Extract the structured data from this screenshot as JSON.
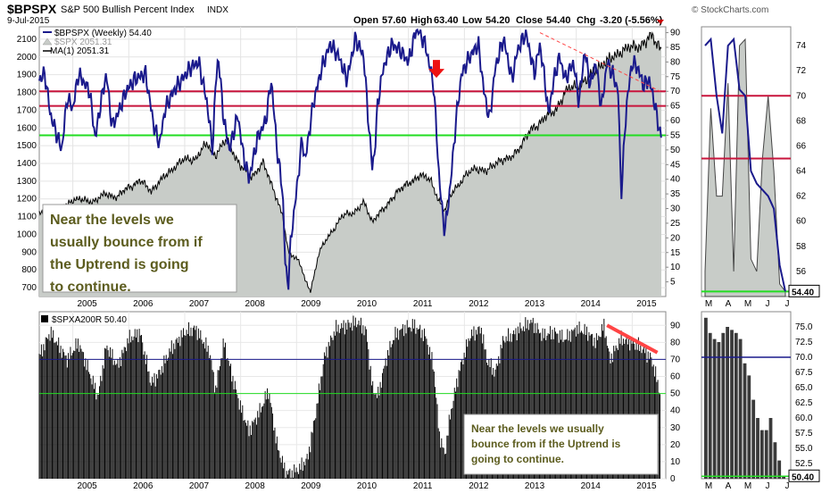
{
  "header": {
    "symbol": "$BPSPX",
    "description": "S&P 500 Bullish Percent Index",
    "exchange": "INDX",
    "date": "9-Jul-2015",
    "open_label": "Open",
    "open": "57.60",
    "high_label": "High",
    "high": "63.40",
    "low_label": "Low",
    "low": "54.20",
    "close_label": "Close",
    "close": "54.40",
    "chg_label": "Chg",
    "chg": "-3.20 (-5.56%)",
    "brand": "© StockCharts.com"
  },
  "colors": {
    "bp_line": "#1a1a8c",
    "spx_fill": "#c8ccc8",
    "spx_line": "#000000",
    "red_level": "#c8143c",
    "green_level": "#22dd22",
    "navy_level": "#1a1a8c",
    "annotation_text": "#5c5c1e",
    "trend": "#ff4444",
    "arrow": "#ee1111"
  },
  "chart_data": [
    {
      "name": "main",
      "type": "line",
      "legend": [
        "$BPSPX (Weekly) 54.40",
        "$SPX 2051.31",
        "MA(1) 2051.31"
      ],
      "series": [
        {
          "name": "$BPSPX (Weekly) 54.40",
          "axis": "right",
          "x": [
            2004.4,
            2004.5,
            2004.6,
            2004.8,
            2004.9,
            2005.0,
            2005.1,
            2005.3,
            2005.4,
            2005.5,
            2005.6,
            2005.7,
            2005.8,
            2005.95,
            2006.1,
            2006.3,
            2006.45,
            2006.55,
            2006.65,
            2006.8,
            2006.95,
            2007.1,
            2007.25,
            2007.4,
            2007.5,
            2007.55,
            2007.6,
            2007.7,
            2007.8,
            2007.95,
            2008.05,
            2008.15,
            2008.3,
            2008.45,
            2008.55,
            2008.65,
            2008.75,
            2008.8,
            2008.85,
            2008.9,
            2009.0,
            2009.1,
            2009.15,
            2009.3,
            2009.45,
            2009.6,
            2009.75,
            2009.9,
            2010.05,
            2010.2,
            2010.3,
            2010.35,
            2010.4,
            2010.45,
            2010.55,
            2010.7,
            2010.85,
            2011.0,
            2011.15,
            2011.3,
            2011.45,
            2011.55,
            2011.6,
            2011.65,
            2011.75,
            2011.85,
            2011.95,
            2012.1,
            2012.25,
            2012.35,
            2012.45,
            2012.55,
            2012.7,
            2012.85,
            2012.95,
            2013.1,
            2013.25,
            2013.35,
            2013.45,
            2013.5,
            2013.6,
            2013.7,
            2013.8,
            2013.95,
            2014.05,
            2014.15,
            2014.25,
            2014.35,
            2014.45,
            2014.55,
            2014.65,
            2014.75,
            2014.8,
            2014.9,
            2015.0,
            2015.1,
            2015.2,
            2015.3,
            2015.4,
            2015.45,
            2015.52
          ],
          "y": [
            74,
            76,
            62,
            50,
            68,
            64,
            76,
            70,
            54,
            66,
            76,
            58,
            62,
            70,
            74,
            76,
            58,
            52,
            64,
            70,
            74,
            78,
            80,
            66,
            50,
            72,
            82,
            60,
            50,
            62,
            48,
            40,
            54,
            60,
            74,
            50,
            36,
            10,
            4,
            20,
            36,
            54,
            46,
            66,
            78,
            86,
            82,
            74,
            88,
            82,
            56,
            44,
            50,
            66,
            78,
            86,
            84,
            80,
            92,
            86,
            72,
            40,
            30,
            22,
            38,
            60,
            76,
            82,
            86,
            70,
            60,
            78,
            88,
            74,
            84,
            90,
            76,
            86,
            72,
            62,
            74,
            82,
            74,
            80,
            66,
            84,
            72,
            80,
            64,
            80,
            76,
            70,
            34,
            66,
            80,
            78,
            72,
            74,
            66,
            60,
            54.4
          ]
        },
        {
          "name": "$SPX 2051.31",
          "axis": "left",
          "x": [
            2004.4,
            2004.6,
            2004.8,
            2005.0,
            2005.2,
            2005.4,
            2005.6,
            2005.8,
            2006.0,
            2006.2,
            2006.4,
            2006.6,
            2006.8,
            2007.0,
            2007.2,
            2007.4,
            2007.55,
            2007.75,
            2007.85,
            2008.0,
            2008.2,
            2008.4,
            2008.6,
            2008.75,
            2008.85,
            2008.95,
            2009.05,
            2009.15,
            2009.25,
            2009.4,
            2009.6,
            2009.8,
            2010.0,
            2010.2,
            2010.35,
            2010.45,
            2010.6,
            2010.8,
            2011.0,
            2011.2,
            2011.4,
            2011.55,
            2011.65,
            2011.8,
            2012.0,
            2012.2,
            2012.4,
            2012.6,
            2012.8,
            2013.0,
            2013.2,
            2013.4,
            2013.6,
            2013.8,
            2014.0,
            2014.2,
            2014.4,
            2014.6,
            2014.8,
            2015.0,
            2015.2,
            2015.35,
            2015.52
          ],
          "y": [
            1120,
            1100,
            1140,
            1200,
            1190,
            1190,
            1230,
            1210,
            1270,
            1300,
            1250,
            1310,
            1380,
            1420,
            1430,
            1510,
            1450,
            1530,
            1480,
            1380,
            1330,
            1400,
            1250,
            1100,
            900,
            880,
            850,
            740,
            680,
            900,
            1000,
            1100,
            1120,
            1180,
            1070,
            1120,
            1150,
            1250,
            1280,
            1340,
            1300,
            1190,
            1130,
            1250,
            1320,
            1380,
            1350,
            1420,
            1420,
            1500,
            1590,
            1650,
            1690,
            1800,
            1840,
            1870,
            1950,
            1980,
            2040,
            2050,
            2080,
            2110,
            2051.31
          ]
        }
      ],
      "left_axis": {
        "ylim": [
          650,
          2170
        ],
        "ticks": [
          700,
          800,
          900,
          1000,
          1100,
          1200,
          1300,
          1400,
          1500,
          1600,
          1700,
          1800,
          1900,
          2000,
          2100
        ]
      },
      "right_axis": {
        "ylim": [
          0,
          92
        ],
        "ticks": [
          5,
          10,
          15,
          20,
          25,
          30,
          35,
          40,
          45,
          50,
          55,
          60,
          65,
          70,
          75,
          80,
          85,
          90
        ]
      },
      "xlim": [
        2004.4,
        2015.6
      ],
      "x_ticks": [
        "2005",
        "2006",
        "2007",
        "2008",
        "2009",
        "2010",
        "2011",
        "2012",
        "2013",
        "2014",
        "2015"
      ],
      "levels": [
        {
          "value": 70,
          "color": "red"
        },
        {
          "value": 65,
          "color": "red"
        },
        {
          "value": 55,
          "color": "green"
        }
      ],
      "trendline": {
        "from": [
          2013.35,
          90
        ],
        "to": [
          2015.5,
          70
        ]
      },
      "arrow_at": [
        2011.5,
        74
      ],
      "annotation": "Near the levels we usually bounce from if the Uptrend is going to continue."
    },
    {
      "name": "zoom",
      "type": "line",
      "x_ticks": [
        "M",
        "A",
        "M",
        "J",
        "J"
      ],
      "ylim": [
        54,
        75.5
      ],
      "y_ticks": [
        56,
        58,
        60,
        62,
        64,
        66,
        68,
        70,
        72,
        74
      ],
      "last_label": "54.40",
      "levels": [
        {
          "value": 70,
          "color": "red"
        },
        {
          "value": 65,
          "color": "red"
        },
        {
          "value": 54.4,
          "color": "green"
        }
      ],
      "series": [
        {
          "name": "bp",
          "values": [
            74,
            74.5,
            70,
            67,
            74,
            74.5,
            70.5,
            70,
            64,
            63,
            62.5,
            62,
            61,
            56.5,
            54.4
          ]
        },
        {
          "name": "spx",
          "values": [
            56,
            69,
            62,
            62,
            71,
            56,
            74,
            74.5,
            57,
            56,
            65,
            70,
            64,
            55,
            54.4
          ]
        }
      ]
    },
    {
      "name": "bottom",
      "type": "bar",
      "legend": "$SPXA200R 50.40",
      "ylim": [
        0,
        98
      ],
      "y_ticks": [
        0,
        10,
        20,
        30,
        40,
        50,
        60,
        70,
        80,
        90
      ],
      "xlim": [
        2004.4,
        2015.6
      ],
      "x_ticks": [
        "2005",
        "2006",
        "2007",
        "2008",
        "2009",
        "2010",
        "2011",
        "2012",
        "2013",
        "2014",
        "2015"
      ],
      "anchors_x": [
        2004.4,
        2004.6,
        2004.9,
        2005.1,
        2005.3,
        2005.45,
        2005.6,
        2005.8,
        2006.0,
        2006.2,
        2006.4,
        2006.55,
        2006.75,
        2007.0,
        2007.2,
        2007.45,
        2007.55,
        2007.7,
        2007.85,
        2008.0,
        2008.15,
        2008.35,
        2008.5,
        2008.65,
        2008.8,
        2008.9,
        2009.05,
        2009.2,
        2009.35,
        2009.5,
        2009.7,
        2009.9,
        2010.1,
        2010.25,
        2010.35,
        2010.45,
        2010.6,
        2010.75,
        2010.9,
        2011.1,
        2011.3,
        2011.45,
        2011.55,
        2011.65,
        2011.75,
        2011.9,
        2012.1,
        2012.3,
        2012.4,
        2012.55,
        2012.7,
        2012.85,
        2013.0,
        2013.2,
        2013.4,
        2013.6,
        2013.8,
        2014.0,
        2014.2,
        2014.35,
        2014.5,
        2014.6,
        2014.8,
        2015.0,
        2015.2,
        2015.35,
        2015.5
      ],
      "anchors_y": [
        72,
        86,
        70,
        80,
        62,
        48,
        78,
        66,
        82,
        86,
        56,
        62,
        76,
        86,
        88,
        74,
        52,
        80,
        60,
        42,
        28,
        40,
        52,
        20,
        4,
        3,
        6,
        12,
        40,
        72,
        88,
        90,
        92,
        86,
        54,
        48,
        70,
        84,
        88,
        90,
        84,
        66,
        26,
        14,
        38,
        62,
        84,
        88,
        70,
        62,
        82,
        84,
        88,
        92,
        84,
        86,
        82,
        88,
        86,
        80,
        90,
        70,
        82,
        80,
        76,
        70,
        50.4
      ],
      "trendline": {
        "from": [
          2014.55,
          90
        ],
        "to": [
          2015.45,
          74
        ]
      },
      "annotation": "Near the levels we usually bounce from if the Uptrend is going to continue.",
      "levels": [
        {
          "value": 70,
          "color": "navy"
        },
        {
          "value": 50,
          "color": "green"
        }
      ]
    },
    {
      "name": "bottom_zoom",
      "type": "bar",
      "x_ticks": [
        "M",
        "A",
        "M",
        "J",
        "J"
      ],
      "ylim": [
        50,
        77.5
      ],
      "y_ticks": [
        52.5,
        55.0,
        57.5,
        60.0,
        62.5,
        65.0,
        67.5,
        70.0,
        72.5,
        75.0
      ],
      "last_label": "50.40",
      "values": [
        76.5,
        74,
        73,
        72.5,
        74,
        75,
        74.5,
        74,
        73,
        69,
        67,
        63,
        60,
        58,
        58,
        60,
        56,
        53,
        50.4
      ],
      "levels": [
        {
          "value": 70,
          "color": "navy"
        },
        {
          "value": 50.4,
          "color": "green"
        }
      ]
    }
  ]
}
